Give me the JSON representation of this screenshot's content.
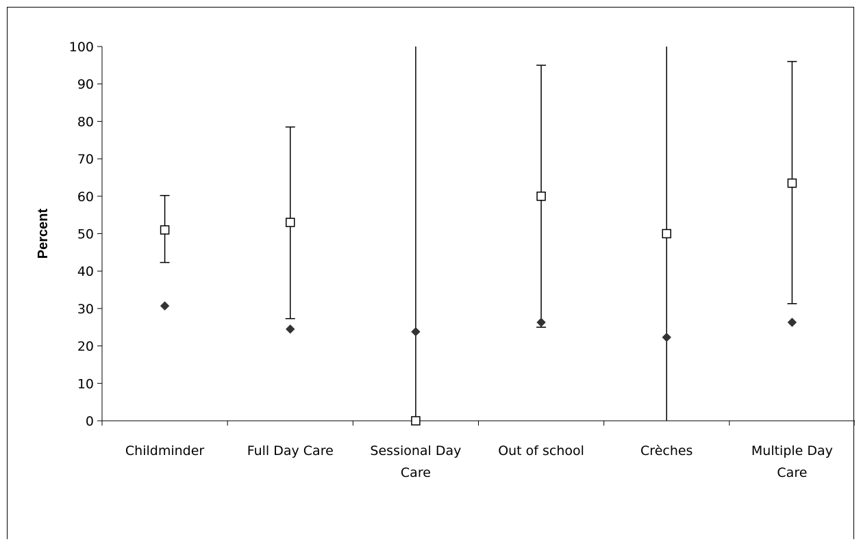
{
  "chart_data": {
    "type": "scatter",
    "title": "",
    "xlabel": "",
    "ylabel": "Percent",
    "ylim": [
      0,
      100
    ],
    "yticks": [
      0,
      10,
      20,
      30,
      40,
      50,
      60,
      70,
      80,
      90,
      100
    ],
    "grid": false,
    "legend": "none",
    "categories": [
      [
        "Childminder"
      ],
      [
        "Full Day Care"
      ],
      [
        "Sessional Day",
        "Care"
      ],
      [
        "Out of school"
      ],
      [
        "Crèches"
      ],
      [
        "Multiple Day",
        "Care"
      ]
    ],
    "series": [
      {
        "marker": "open-square",
        "values": [
          51,
          53,
          0,
          60,
          50,
          63.5
        ],
        "error_low": [
          42.3,
          27.3,
          0,
          25,
          0,
          31.3
        ],
        "error_high": [
          60.2,
          78.5,
          100,
          95,
          100,
          96
        ]
      },
      {
        "marker": "filled-diamond",
        "values": [
          30.7,
          24.5,
          23.8,
          26.3,
          22.3,
          26.3
        ]
      }
    ],
    "colors": {
      "line": "#000000",
      "diamond": "#333333",
      "square_fill": "#ffffff"
    }
  }
}
